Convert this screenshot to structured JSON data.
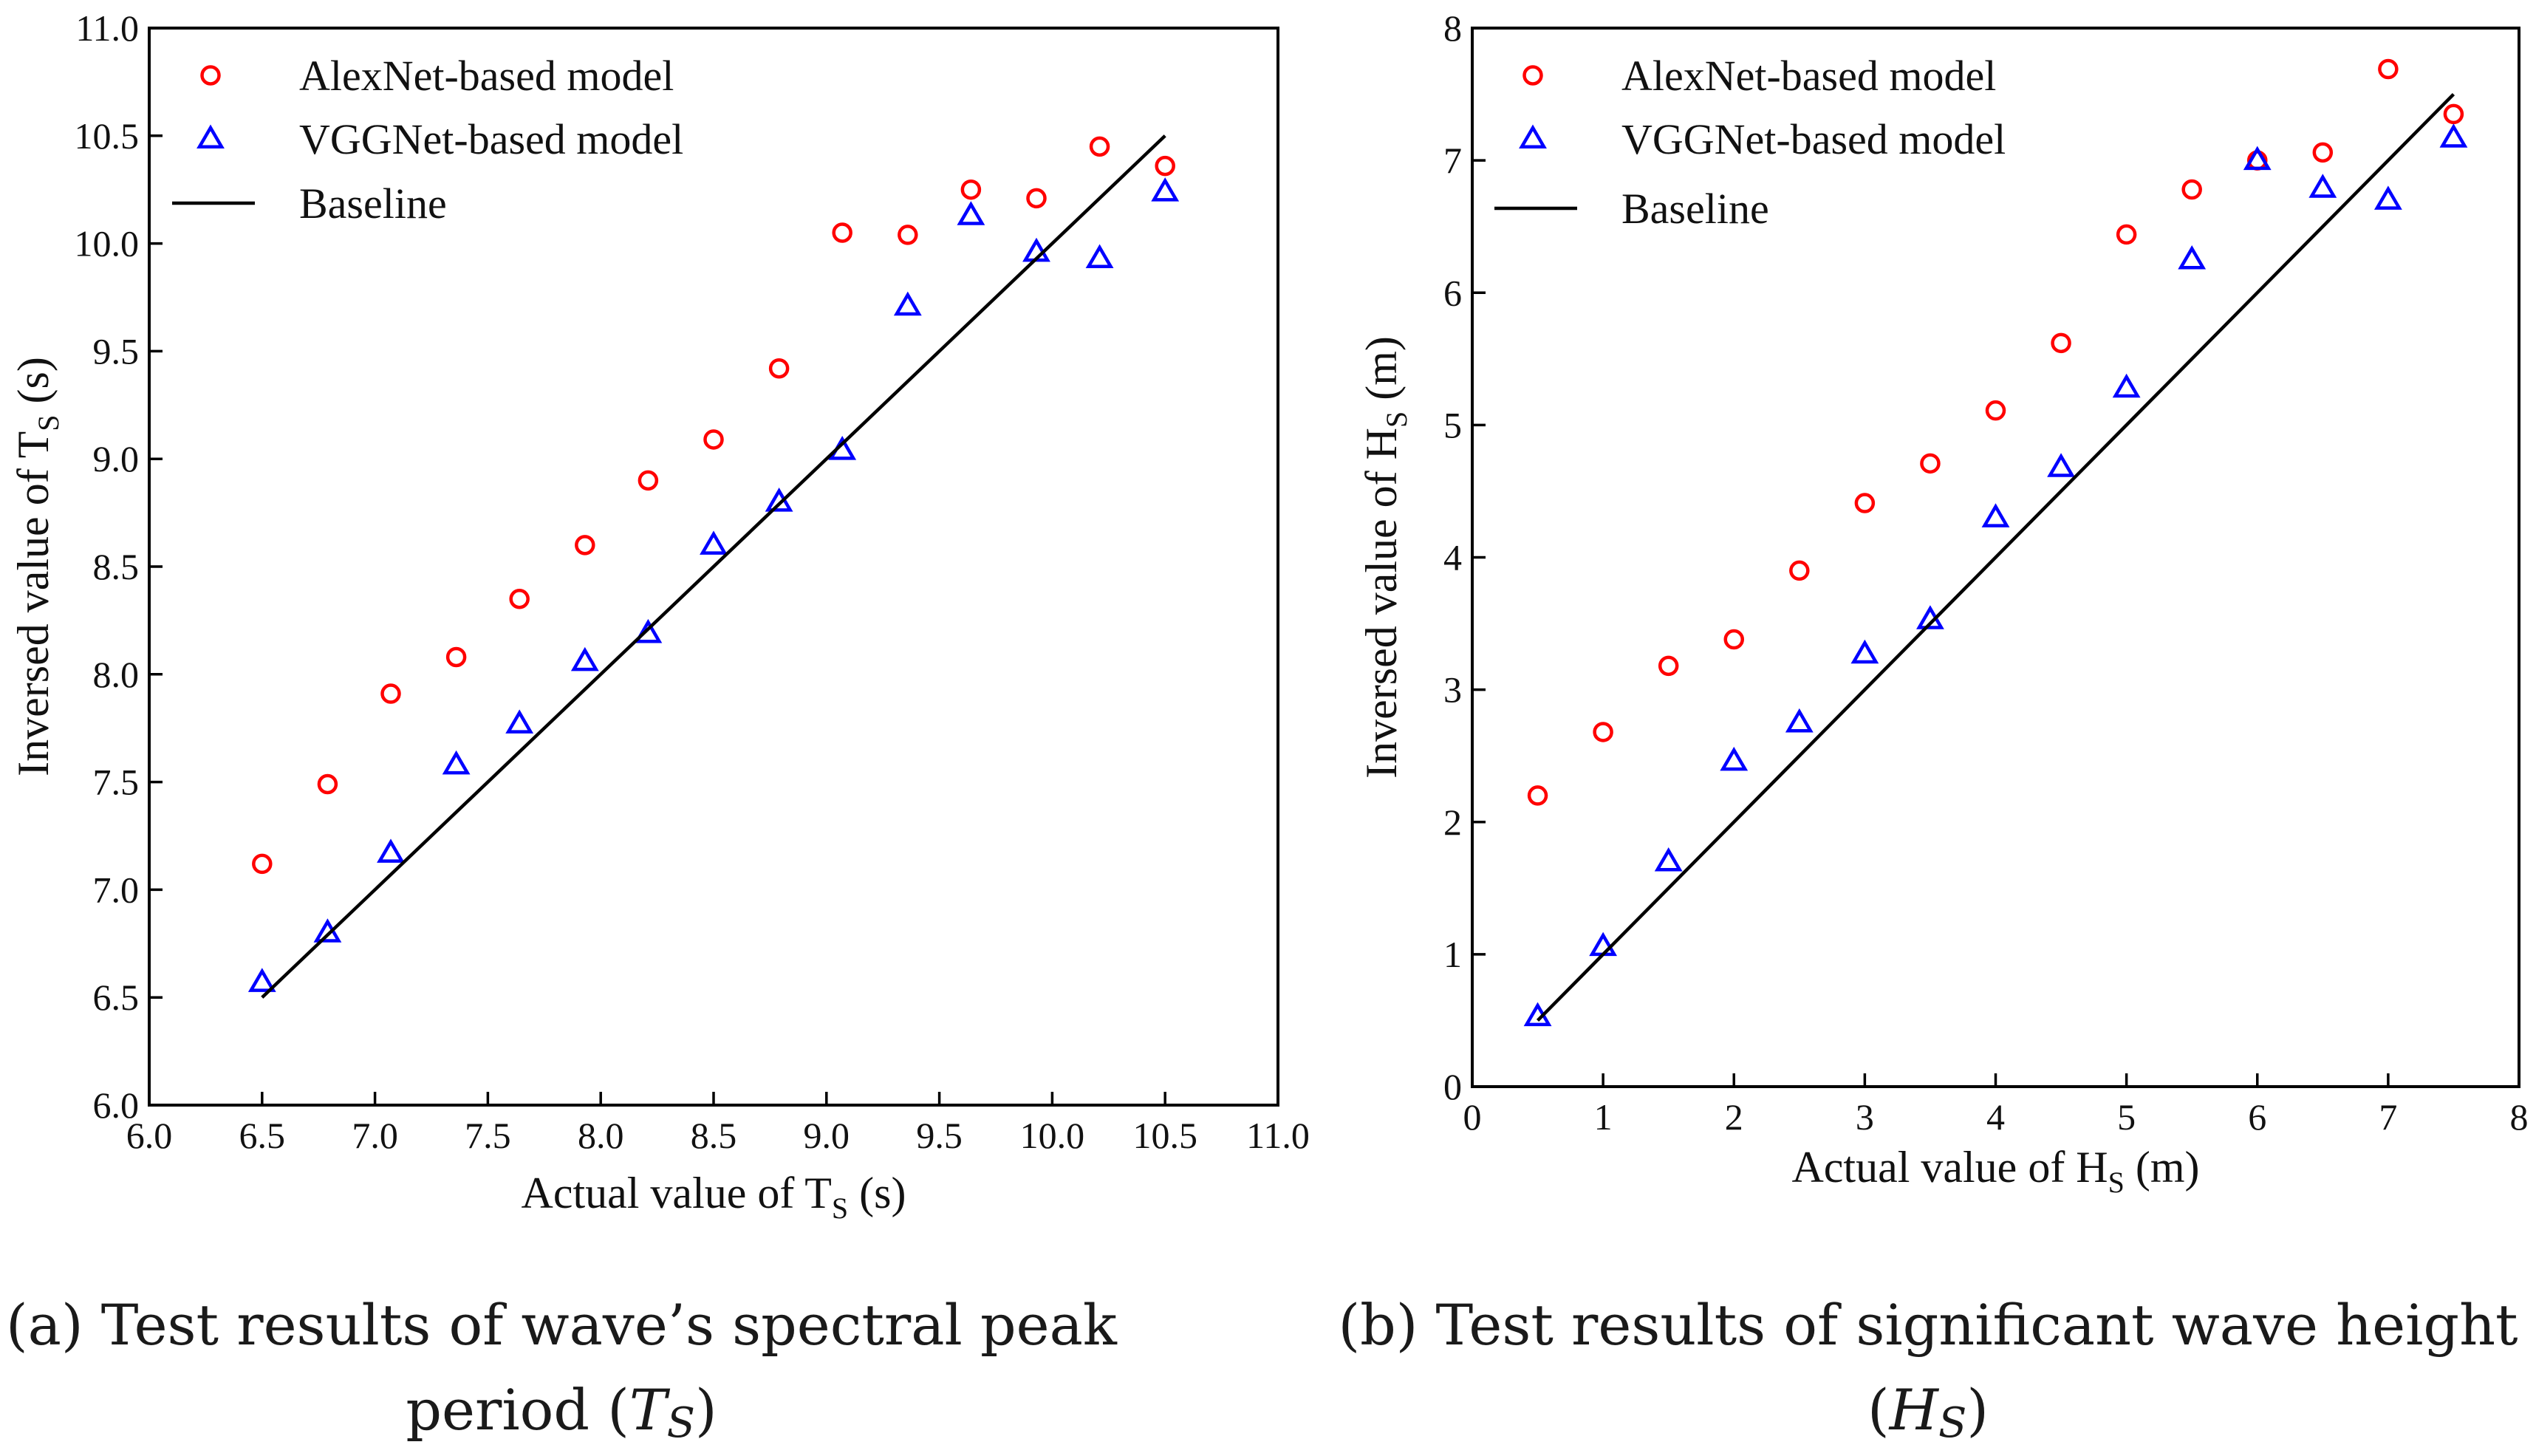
{
  "chart_data": [
    {
      "type": "scatter",
      "title": "",
      "xlabel": "Actual value of T",
      "xlabel_sub": "S",
      "xlabel_suffix": " (s)",
      "ylabel": "Inversed value of T",
      "ylabel_sub": "S",
      "ylabel_suffix": " (s)",
      "xlim": [
        6.0,
        11.0
      ],
      "ylim": [
        6.0,
        11.0
      ],
      "xticks": [
        "6.0",
        "6.5",
        "7.0",
        "7.5",
        "8.0",
        "8.5",
        "9.0",
        "9.5",
        "10.0",
        "10.5",
        "11.0"
      ],
      "yticks": [
        "6.0",
        "6.5",
        "7.0",
        "7.5",
        "8.0",
        "8.5",
        "9.0",
        "9.5",
        "10.0",
        "10.5",
        "11.0"
      ],
      "series": [
        {
          "name": "AlexNet-based model",
          "marker": "circle",
          "color": "#ff0000",
          "x": [
            6.5,
            6.79,
            7.07,
            7.36,
            7.64,
            7.93,
            8.21,
            8.5,
            8.79,
            9.07,
            9.36,
            9.64,
            9.93,
            10.21,
            10.5
          ],
          "y": [
            7.12,
            7.49,
            7.91,
            8.08,
            8.35,
            8.6,
            8.9,
            9.09,
            9.42,
            10.05,
            10.04,
            10.25,
            10.21,
            10.45,
            10.36
          ]
        },
        {
          "name": "VGGNet-based model",
          "marker": "triangle",
          "color": "#0000ff",
          "x": [
            6.5,
            6.79,
            7.07,
            7.36,
            7.64,
            7.93,
            8.21,
            8.5,
            8.79,
            9.07,
            9.36,
            9.64,
            9.93,
            10.21,
            10.5
          ],
          "y": [
            6.57,
            6.8,
            7.17,
            7.58,
            7.77,
            8.06,
            8.19,
            8.6,
            8.8,
            9.04,
            9.71,
            10.13,
            9.96,
            9.93,
            10.24
          ]
        },
        {
          "name": "Baseline",
          "marker": "line",
          "color": "#000000",
          "x": [
            6.5,
            10.5
          ],
          "y": [
            6.5,
            10.5
          ]
        }
      ],
      "caption_lines": [
        "(a) Test results of wave’s spectral peak",
        "period ("
      ],
      "caption_var": "T",
      "caption_var_sub": "S",
      "caption_close": ")"
    },
    {
      "type": "scatter",
      "title": "",
      "xlabel": "Actual value of H",
      "xlabel_sub": "S",
      "xlabel_suffix": " (m)",
      "ylabel": "Inversed value of H",
      "ylabel_sub": "S",
      "ylabel_suffix": " (m)",
      "xlim": [
        0,
        8
      ],
      "ylim": [
        0,
        8
      ],
      "xticks": [
        "0",
        "1",
        "2",
        "3",
        "4",
        "5",
        "6",
        "7",
        "8"
      ],
      "yticks": [
        "0",
        "1",
        "2",
        "3",
        "4",
        "5",
        "6",
        "7",
        "8"
      ],
      "series": [
        {
          "name": "AlexNet-based model",
          "marker": "circle",
          "color": "#ff0000",
          "x": [
            0.5,
            1.0,
            1.5,
            2.0,
            2.5,
            3.0,
            3.5,
            4.0,
            4.5,
            5.0,
            5.5,
            6.0,
            6.5,
            7.0,
            7.5
          ],
          "y": [
            2.2,
            2.68,
            3.18,
            3.38,
            3.9,
            4.41,
            4.71,
            5.11,
            5.62,
            6.44,
            6.78,
            7.0,
            7.06,
            7.69,
            7.35
          ]
        },
        {
          "name": "VGGNet-based model",
          "marker": "triangle",
          "color": "#0000ff",
          "x": [
            0.5,
            1.0,
            1.5,
            2.0,
            2.5,
            3.0,
            3.5,
            4.0,
            4.5,
            5.0,
            5.5,
            6.0,
            6.5,
            7.0,
            7.5
          ],
          "y": [
            0.53,
            1.06,
            1.7,
            2.46,
            2.75,
            3.27,
            3.53,
            4.3,
            4.68,
            5.28,
            6.25,
            7.0,
            6.79,
            6.7,
            7.17
          ]
        },
        {
          "name": "Baseline",
          "marker": "line",
          "color": "#000000",
          "x": [
            0.5,
            7.5
          ],
          "y": [
            0.5,
            7.5
          ]
        }
      ],
      "caption_lines": [
        "(b) Test results of significant wave height",
        "("
      ],
      "caption_var": "H",
      "caption_var_sub": "S",
      "caption_close": ")"
    }
  ]
}
